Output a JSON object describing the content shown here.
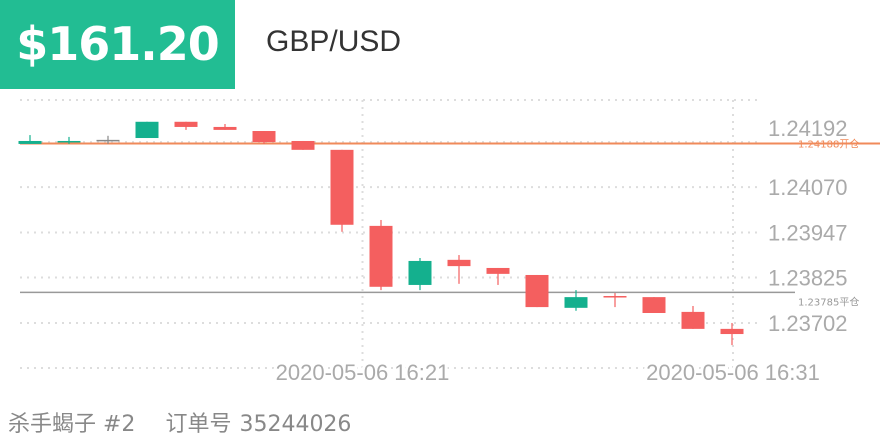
{
  "header": {
    "pnl": "$161.20",
    "symbol": "GBP/USD",
    "pnl_color": "#22bd93"
  },
  "footer": {
    "strategy": "杀手蝎子 #2",
    "order_label": "订单号",
    "order_number": "35244026"
  },
  "chart_data": {
    "type": "candlestick",
    "ylim": [
      1.2358,
      1.24306
    ],
    "y_ticks": [
      "1.24192",
      "1.24070",
      "1.23947",
      "1.23825",
      "1.23702"
    ],
    "x_ticks": [
      {
        "label": "2020-05-06 16:21",
        "at_candle": 8.5
      },
      {
        "label": "2020-05-06 16:31",
        "at_candle": 18
      }
    ],
    "grid": true,
    "colors": {
      "up": "#14b08e",
      "down": "#f45f5f",
      "doji": "#888888",
      "open_line": "#f08a5a",
      "close_line": "#999999"
    },
    "reference_lines": [
      {
        "value": 1.24188,
        "label": "1.24188开仓",
        "kind": "open"
      },
      {
        "value": 1.23785,
        "label": "1.23785平仓",
        "kind": "close"
      }
    ],
    "candles": [
      {
        "o": 1.24187,
        "h": 1.24211,
        "l": 1.24187,
        "c": 1.24195
      },
      {
        "o": 1.24192,
        "h": 1.24206,
        "l": 1.24187,
        "c": 1.24195
      },
      {
        "o": 1.24198,
        "h": 1.24209,
        "l": 1.24187,
        "c": 1.24198
      },
      {
        "o": 1.24203,
        "h": 1.24247,
        "l": 1.24203,
        "c": 1.24247
      },
      {
        "o": 1.24247,
        "h": 1.24247,
        "l": 1.24225,
        "c": 1.24233
      },
      {
        "o": 1.24233,
        "h": 1.24241,
        "l": 1.24225,
        "c": 1.24225
      },
      {
        "o": 1.24222,
        "h": 1.24222,
        "l": 1.24187,
        "c": 1.24192
      },
      {
        "o": 1.24195,
        "h": 1.24195,
        "l": 1.24171,
        "c": 1.24171
      },
      {
        "o": 1.24171,
        "h": 1.24171,
        "l": 1.23949,
        "c": 1.23968
      },
      {
        "o": 1.23965,
        "h": 1.23981,
        "l": 1.23791,
        "c": 1.238
      },
      {
        "o": 1.23805,
        "h": 1.23878,
        "l": 1.23791,
        "c": 1.2387
      },
      {
        "o": 1.23873,
        "h": 1.23886,
        "l": 1.23808,
        "c": 1.23856
      },
      {
        "o": 1.23851,
        "h": 1.23851,
        "l": 1.23805,
        "c": 1.23835
      },
      {
        "o": 1.23832,
        "h": 1.23832,
        "l": 1.23745,
        "c": 1.23745
      },
      {
        "o": 1.23743,
        "h": 1.23791,
        "l": 1.23735,
        "c": 1.23772
      },
      {
        "o": 1.23775,
        "h": 1.23783,
        "l": 1.23745,
        "c": 1.23772
      },
      {
        "o": 1.23772,
        "h": 1.23772,
        "l": 1.23729,
        "c": 1.23729
      },
      {
        "o": 1.23732,
        "h": 1.23748,
        "l": 1.23686,
        "c": 1.23686
      },
      {
        "o": 1.23686,
        "h": 1.23702,
        "l": 1.23642,
        "c": 1.23672
      }
    ]
  }
}
